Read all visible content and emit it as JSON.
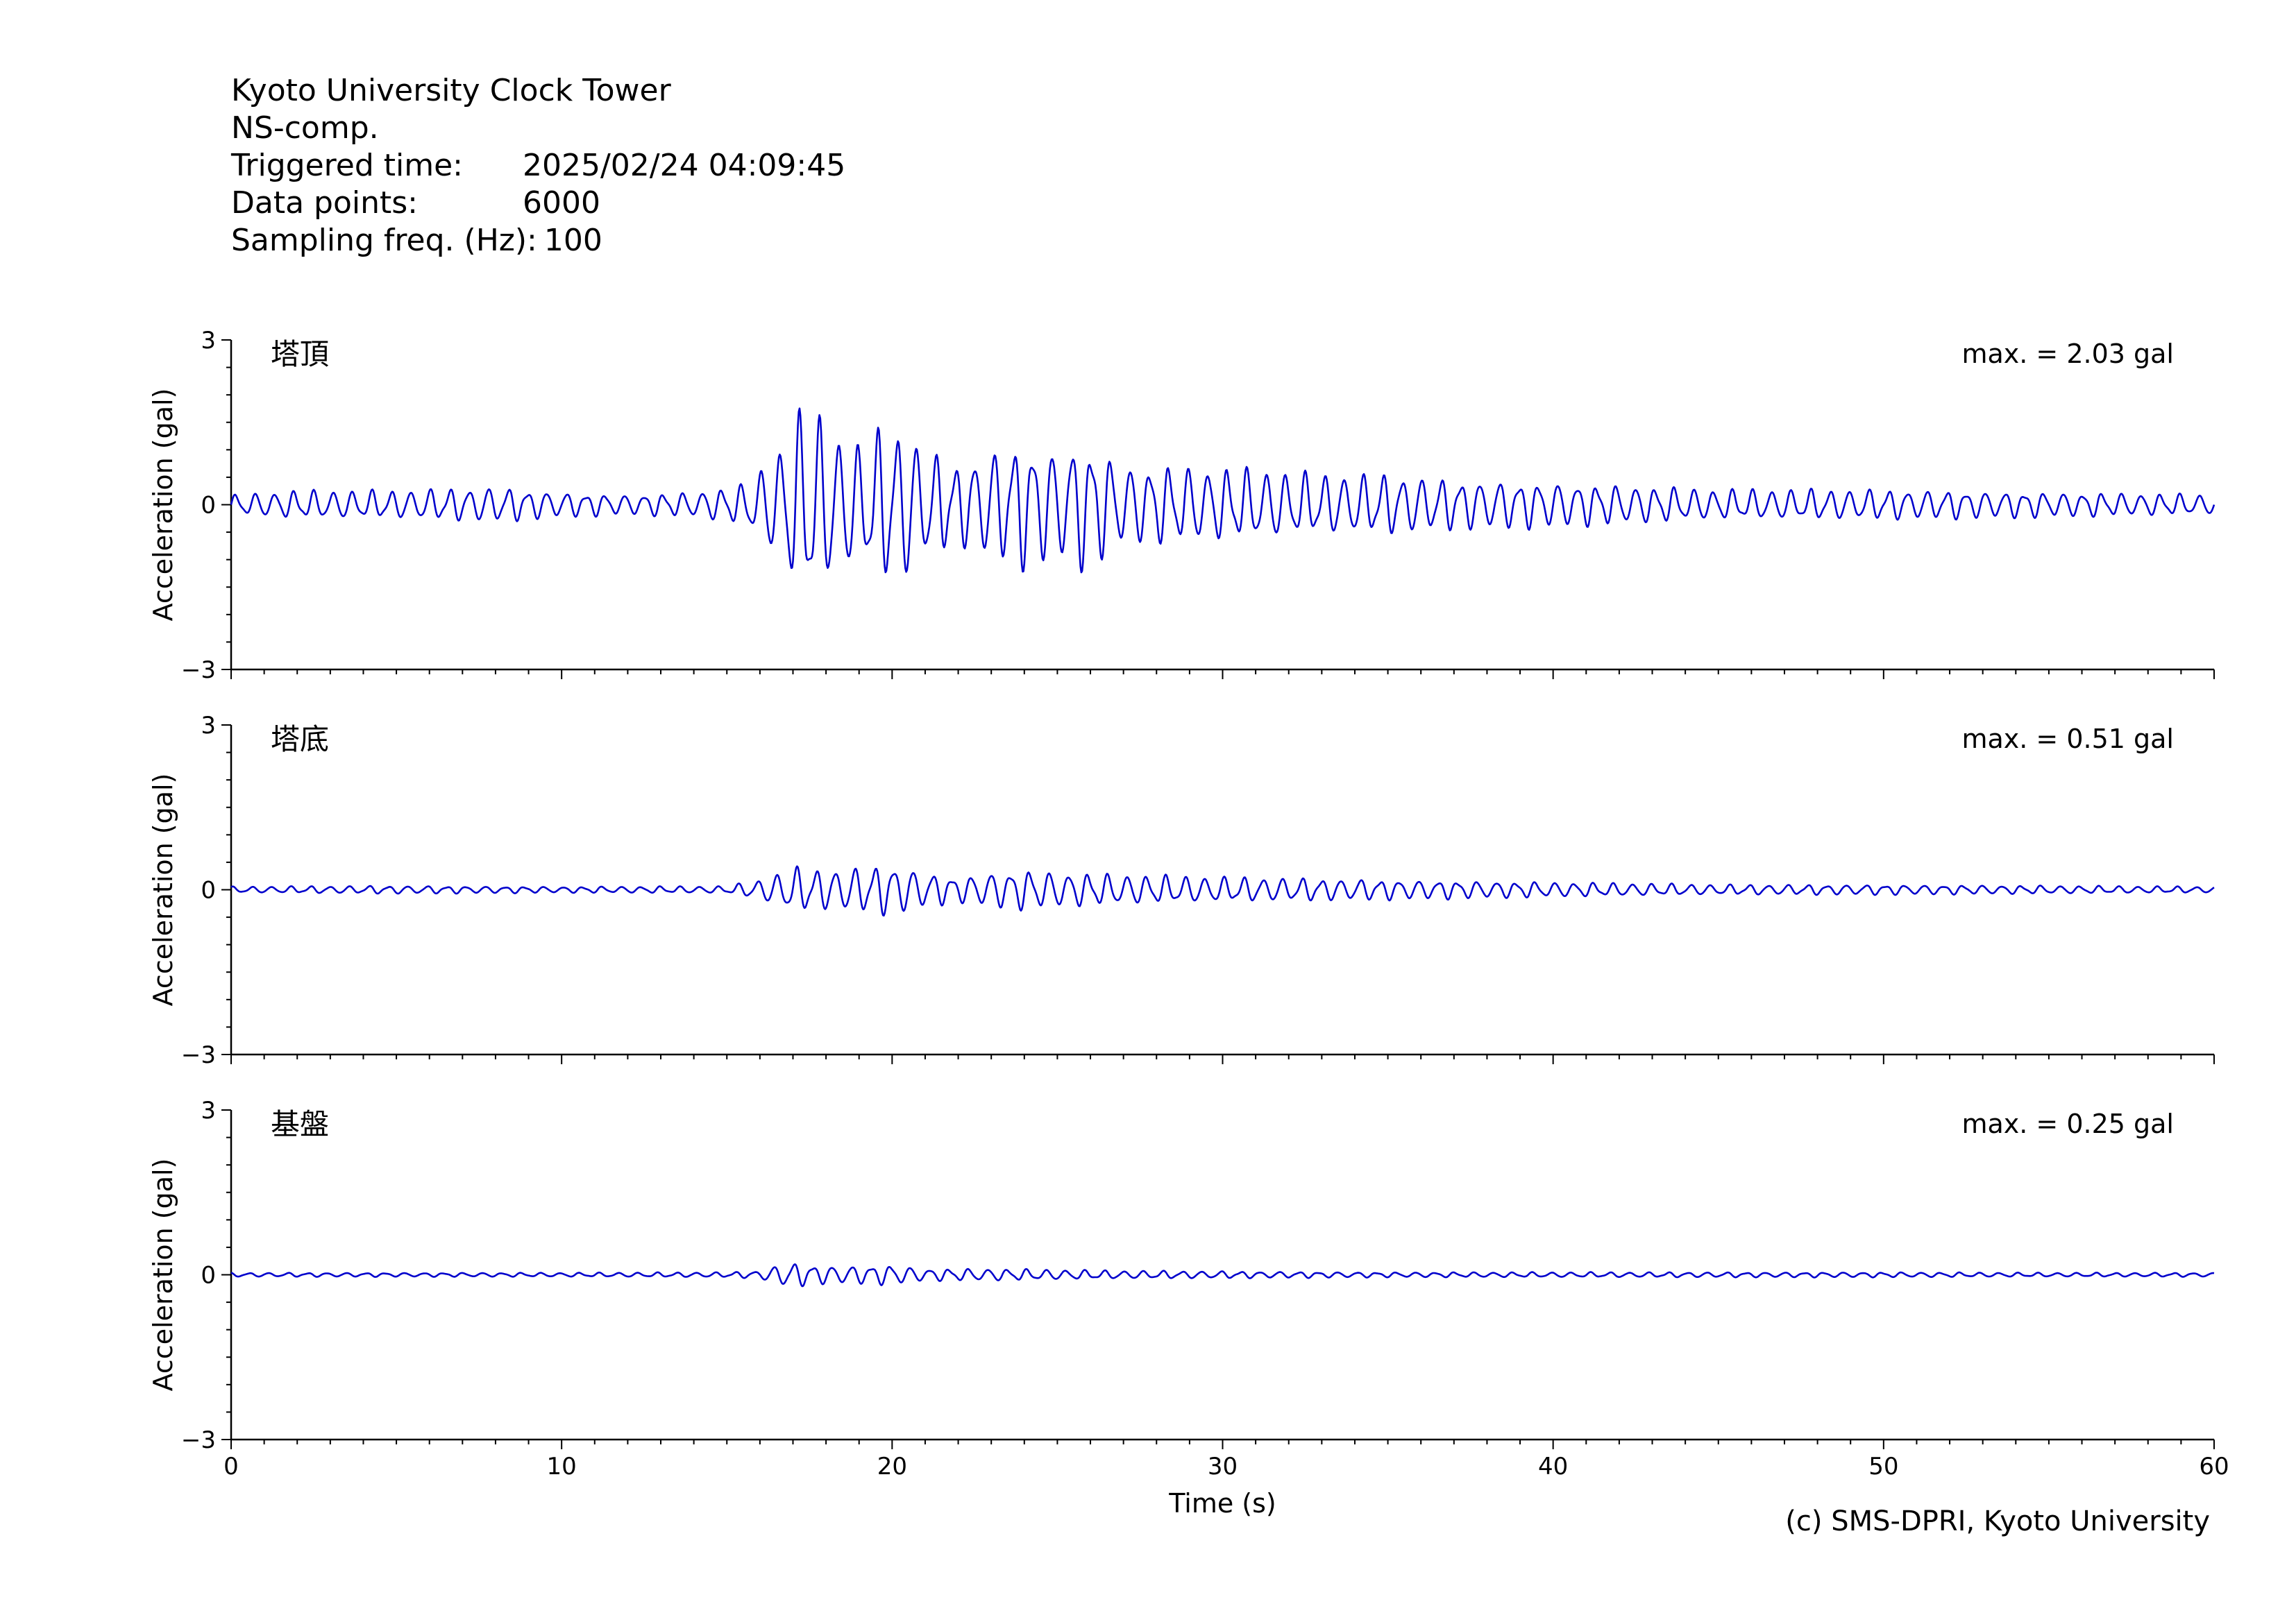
{
  "header": {
    "station": "Kyoto University Clock Tower",
    "component": "NS-comp.",
    "triggered_label": "Triggered time:",
    "triggered_value": "2025/02/24 04:09:45",
    "points_label": "Data points:",
    "points_value": "6000",
    "freq_label": "Sampling freq. (Hz):",
    "freq_value": "100"
  },
  "credit": "(c) SMS-DPRI, Kyoto University",
  "colors": {
    "trace": "#0000cc",
    "axis": "#000000"
  },
  "chart_data": {
    "type": "line",
    "xlabel": "Time (s)",
    "xlim": [
      0,
      60
    ],
    "xticks": [
      0,
      10,
      20,
      30,
      40,
      50,
      60
    ],
    "grid": false,
    "panels": [
      {
        "name": "塔頂",
        "ylabel": "Acceleration (gal)",
        "ylim": [
          -3,
          3
        ],
        "yticks": [
          -3,
          0,
          3
        ],
        "max_text": "max. = 2.03 gal",
        "peak": 2.03,
        "envelope": {
          "t": [
            0,
            2,
            5,
            8,
            10,
            12,
            14,
            15.5,
            16.3,
            17,
            17.4,
            18,
            19,
            19.8,
            20.5,
            21,
            22,
            23,
            24,
            25,
            25.8,
            27,
            29,
            31,
            33,
            35,
            37,
            40,
            45,
            50,
            55,
            60
          ],
          "amp": [
            0.2,
            0.28,
            0.28,
            0.35,
            0.25,
            0.2,
            0.25,
            0.4,
            0.9,
            1.6,
            2.03,
            1.6,
            1.2,
            1.55,
            1.5,
            1.1,
            0.8,
            1.1,
            1.25,
            1.1,
            1.3,
            0.8,
            0.75,
            0.7,
            0.6,
            0.6,
            0.5,
            0.45,
            0.3,
            0.3,
            0.25,
            0.2
          ]
        }
      },
      {
        "name": "塔底",
        "ylabel": "Acceleration (gal)",
        "ylim": [
          -3,
          3
        ],
        "yticks": [
          -3,
          0,
          3
        ],
        "max_text": "max. = 0.51 gal",
        "peak": 0.51,
        "envelope": {
          "t": [
            0,
            5,
            10,
            15,
            16,
            17,
            18,
            19,
            20,
            21,
            22,
            23,
            24,
            25,
            27,
            30,
            35,
            40,
            45,
            50,
            55,
            60
          ],
          "amp": [
            0.06,
            0.08,
            0.06,
            0.07,
            0.2,
            0.45,
            0.4,
            0.45,
            0.51,
            0.35,
            0.25,
            0.35,
            0.4,
            0.35,
            0.3,
            0.25,
            0.2,
            0.15,
            0.1,
            0.1,
            0.08,
            0.06
          ]
        }
      },
      {
        "name": "基盤",
        "ylabel": "Acceleration (gal)",
        "ylim": [
          -3,
          3
        ],
        "yticks": [
          -3,
          0,
          3
        ],
        "max_text": "max. = 0.25 gal",
        "peak": 0.25,
        "envelope": {
          "t": [
            0,
            5,
            10,
            15,
            16,
            16.8,
            18,
            19,
            20,
            21,
            23,
            25,
            27,
            30,
            35,
            40,
            45,
            50,
            55,
            60
          ],
          "amp": [
            0.04,
            0.04,
            0.04,
            0.05,
            0.08,
            0.25,
            0.18,
            0.18,
            0.2,
            0.12,
            0.12,
            0.1,
            0.08,
            0.07,
            0.05,
            0.05,
            0.05,
            0.05,
            0.04,
            0.04
          ]
        }
      }
    ]
  }
}
